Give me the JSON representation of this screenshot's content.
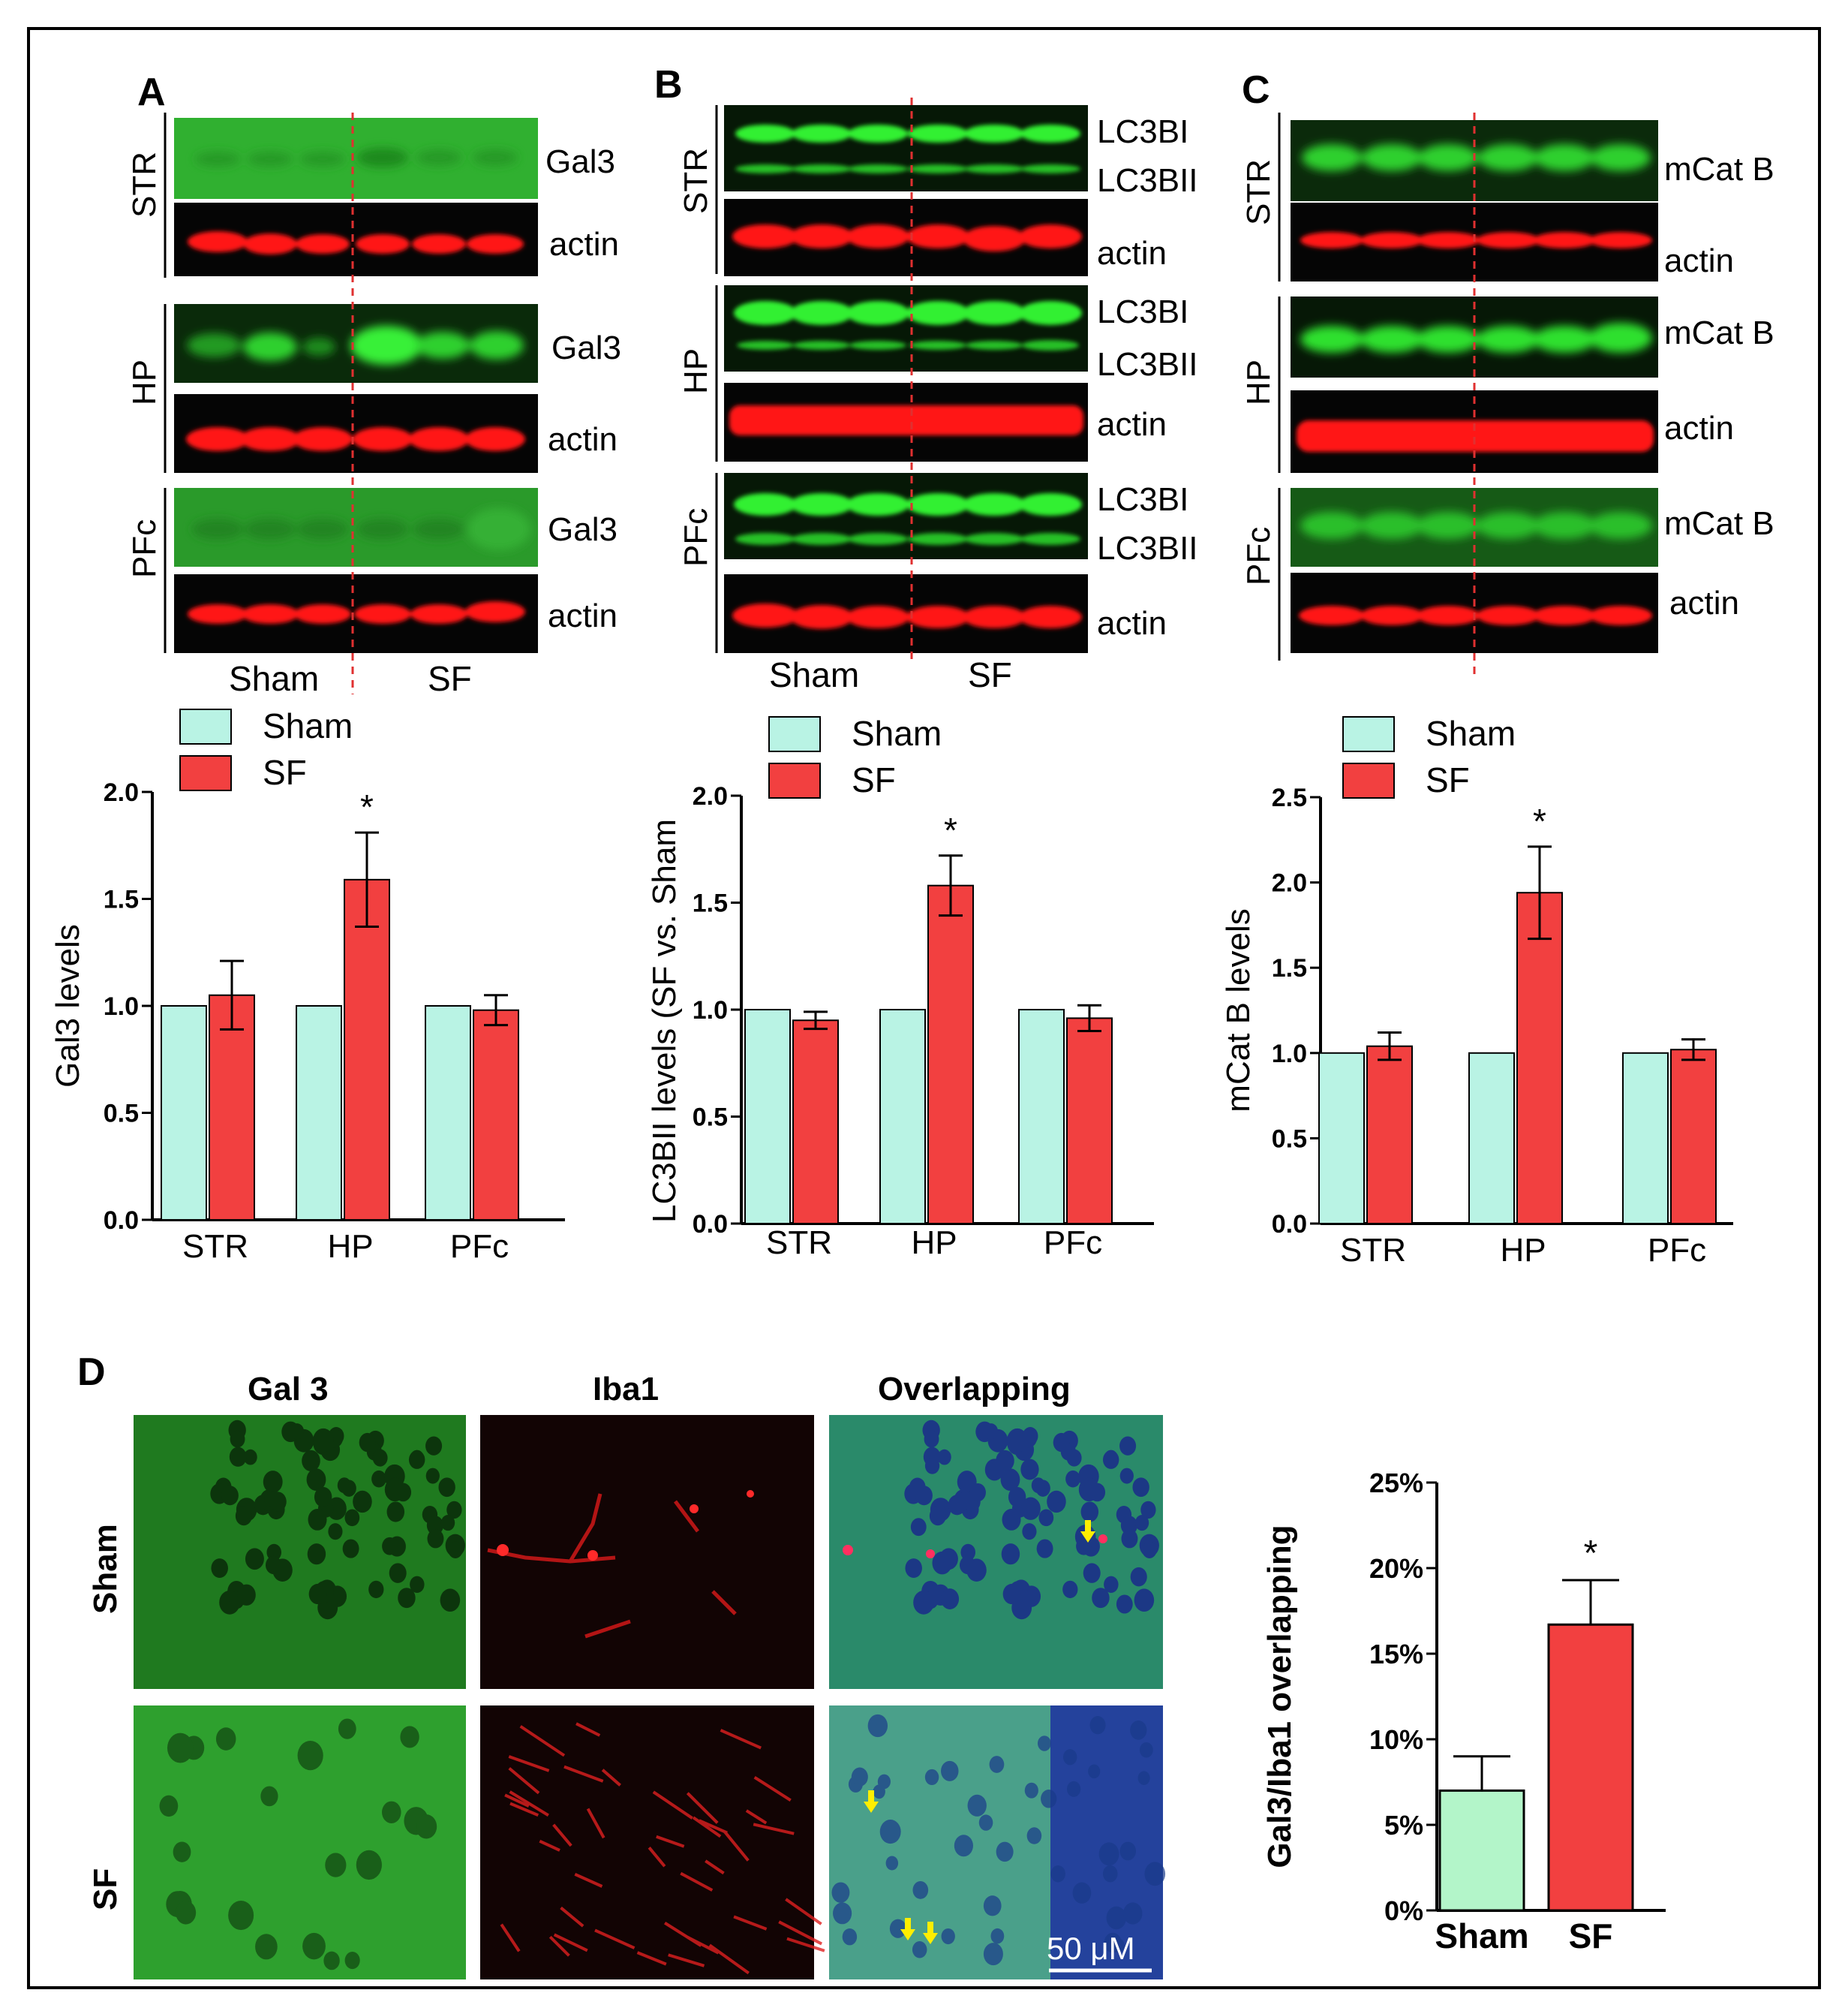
{
  "panels": {
    "A": {
      "letter": "A",
      "regions": [
        "STR",
        "HP",
        "PFc"
      ],
      "protein_labels": [
        "Gal3",
        "Gal3",
        "Gal3"
      ],
      "loading_label": "actin",
      "groups": [
        "Sham",
        "SF"
      ]
    },
    "B": {
      "letter": "B",
      "regions": [
        "STR",
        "HP",
        "PFc"
      ],
      "protein_labels_upper": [
        "LC3BI",
        "LC3BI",
        "LC3BI"
      ],
      "protein_labels_lower": [
        "LC3BII",
        "LC3BII",
        "LC3BII"
      ],
      "loading_label": "actin",
      "groups": [
        "Sham",
        "SF"
      ]
    },
    "C": {
      "letter": "C",
      "regions": [
        "STR",
        "HP",
        "PFc"
      ],
      "protein_labels": [
        "mCat B",
        "mCat B",
        "mCat B"
      ],
      "loading_label": "actin"
    },
    "D": {
      "letter": "D",
      "columns": [
        "Gal 3",
        "Iba1",
        "Overlapping"
      ],
      "rows": [
        "Sham",
        "SF"
      ],
      "scale_bar": "50 μM"
    }
  },
  "colors": {
    "sham": "#b9f3e4",
    "sf": "#f24040",
    "sham_D": "#b3f5c9",
    "blot_green": "#2ee02e",
    "blot_red": "#ff1010",
    "divider": "#e03030",
    "arrow": "#ffee00"
  },
  "chart_data": [
    {
      "type": "bar",
      "categories": [
        "STR",
        "HP",
        "PFc"
      ],
      "series": [
        {
          "name": "Sham",
          "values": [
            1.0,
            1.0,
            1.0
          ],
          "errors": [
            0,
            0,
            0
          ]
        },
        {
          "name": "SF",
          "values": [
            1.05,
            1.59,
            0.98
          ],
          "errors": [
            0.16,
            0.22,
            0.07
          ]
        }
      ],
      "ylabel": "Gal3 levels",
      "ylim": [
        0,
        2.0
      ],
      "yticks": [
        "0.0",
        "0.5",
        "1.0",
        "1.5",
        "2.0"
      ],
      "significance": {
        "category": "HP",
        "mark": "*"
      },
      "legend": "top-left"
    },
    {
      "type": "bar",
      "categories": [
        "STR",
        "HP",
        "PFc"
      ],
      "series": [
        {
          "name": "Sham",
          "values": [
            1.0,
            1.0,
            1.0
          ],
          "errors": [
            0,
            0,
            0
          ]
        },
        {
          "name": "SF",
          "values": [
            0.95,
            1.58,
            0.96
          ],
          "errors": [
            0.04,
            0.14,
            0.06
          ]
        }
      ],
      "ylabel": "LC3BII levels (SF vs. Sham",
      "ylim": [
        0,
        2.0
      ],
      "yticks": [
        "0.0",
        "0.5",
        "1.0",
        "1.5",
        "2.0"
      ],
      "significance": {
        "category": "HP",
        "mark": "*"
      },
      "legend": "top-left"
    },
    {
      "type": "bar",
      "categories": [
        "STR",
        "HP",
        "PFc"
      ],
      "series": [
        {
          "name": "Sham",
          "values": [
            1.0,
            1.0,
            1.0
          ],
          "errors": [
            0,
            0,
            0
          ]
        },
        {
          "name": "SF",
          "values": [
            1.04,
            1.94,
            1.02
          ],
          "errors": [
            0.08,
            0.27,
            0.06
          ]
        }
      ],
      "ylabel": "mCat B levels",
      "ylim": [
        0,
        2.5
      ],
      "yticks": [
        "0.0",
        "0.5",
        "1.0",
        "1.5",
        "2.0",
        "2.5"
      ],
      "significance": {
        "category": "HP",
        "mark": "*"
      },
      "legend": "top-left"
    },
    {
      "type": "bar",
      "categories": [
        "Sham",
        "SF"
      ],
      "values": [
        7.0,
        16.7
      ],
      "errors": [
        2.0,
        2.6
      ],
      "ylabel": "Gal3/Iba1 overlapping",
      "ylim": [
        0,
        25
      ],
      "yticks": [
        "0%",
        "5%",
        "10%",
        "15%",
        "20%",
        "25%"
      ],
      "significance": {
        "category": "SF",
        "mark": "*"
      }
    }
  ]
}
